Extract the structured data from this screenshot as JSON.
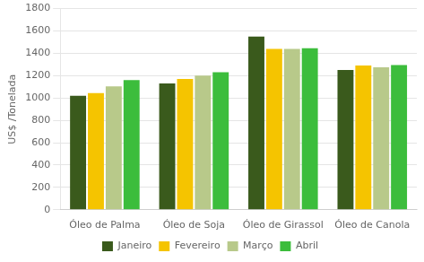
{
  "chart_data": {
    "type": "bar",
    "categories": [
      "Óleo de Palma",
      "Óleo de Soja",
      "Óleo de Girassol",
      "Óleo de Canola"
    ],
    "series": [
      {
        "name": "Janeiro",
        "color": "#3a5a1c",
        "values": [
          1020,
          1130,
          1550,
          1250
        ]
      },
      {
        "name": "Fevereiro",
        "color": "#f5c400",
        "values": [
          1045,
          1170,
          1440,
          1290
        ]
      },
      {
        "name": "Março",
        "color": "#b8c98a",
        "values": [
          1105,
          1200,
          1440,
          1275
        ]
      },
      {
        "name": "Abril",
        "color": "#3cbd3c",
        "values": [
          1160,
          1230,
          1445,
          1295
        ]
      }
    ],
    "ylabel": "US$ /Tonelada",
    "ylim": [
      0,
      1800
    ],
    "yticks": [
      0,
      200,
      400,
      600,
      800,
      1000,
      1200,
      1400,
      1600,
      1800
    ],
    "grid": true,
    "legend": "bottom"
  }
}
